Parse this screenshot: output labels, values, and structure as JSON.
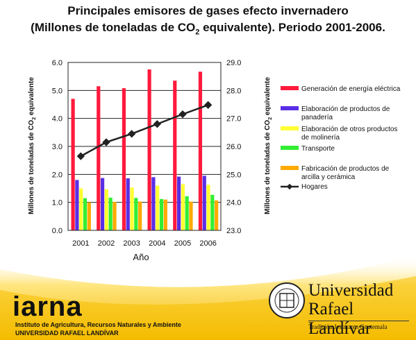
{
  "title_line1": "Principales emisores de gases efecto invernadero",
  "title_line2_pre": "(Millones de toneladas de CO",
  "title_line2_sub": "2",
  "title_line2_post": " equivalente). Periodo 2001-2006.",
  "chart_data": {
    "type": "bar",
    "categories": [
      "2001",
      "2002",
      "2003",
      "2004",
      "2005",
      "2006"
    ],
    "xlabel": "Año",
    "ylabel_left_pre": "Millones de toneladas de CO",
    "ylabel_left_sub": "2",
    "ylabel_left_post": " equivalente",
    "ylabel_right_pre": "Millones de toneladas de CO",
    "ylabel_right_sub": "2",
    "ylabel_right_post": " equivalente",
    "ylim_left": [
      0.0,
      6.0
    ],
    "yticks_left": [
      "0.0",
      "1.0",
      "2.0",
      "3.0",
      "4.0",
      "5.0",
      "6.0"
    ],
    "ylim_right": [
      23.0,
      29.0
    ],
    "yticks_right": [
      "23.0",
      "24.0",
      "25.0",
      "26.0",
      "27.0",
      "28.0",
      "29.0"
    ],
    "grid": true,
    "legend_position": "right",
    "bar_series": [
      {
        "name": "Generación de energía eléctrica",
        "color": "#ff1a3c",
        "values": [
          4.7,
          5.15,
          5.08,
          5.75,
          5.35,
          5.67
        ]
      },
      {
        "name": "Elaboración de productos de panadería",
        "color": "#5a2ee6",
        "values": [
          1.8,
          1.87,
          1.86,
          1.9,
          1.92,
          1.95
        ]
      },
      {
        "name": "Elaboración de otros productos de molinería",
        "color": "#ffff33",
        "values": [
          1.5,
          1.47,
          1.53,
          1.6,
          1.65,
          1.63
        ]
      },
      {
        "name": "Transporte",
        "color": "#33ee33",
        "values": [
          1.15,
          1.17,
          1.16,
          1.12,
          1.22,
          1.27
        ]
      },
      {
        "name": "Fabricación de productos de arcilla y cerámica",
        "color": "#ffaa00",
        "values": [
          1.0,
          1.02,
          1.03,
          1.1,
          1.03,
          1.07
        ]
      }
    ],
    "line_series": {
      "name": "Hogares",
      "color": "#222222",
      "axis": "right",
      "values": [
        25.65,
        26.15,
        26.45,
        26.8,
        27.15,
        27.48
      ]
    }
  },
  "footer": {
    "iarna_logo": "iarna",
    "iarna_line1": "Instituto de Agricultura, Recursos Naturales y Ambiente",
    "iarna_line2": "UNIVERSIDAD RAFAEL LANDÍVAR",
    "url_name1": "Universidad",
    "url_name2": "Rafael Landívar",
    "url_tagline": "Tradición Jesuita en Guatemala"
  }
}
